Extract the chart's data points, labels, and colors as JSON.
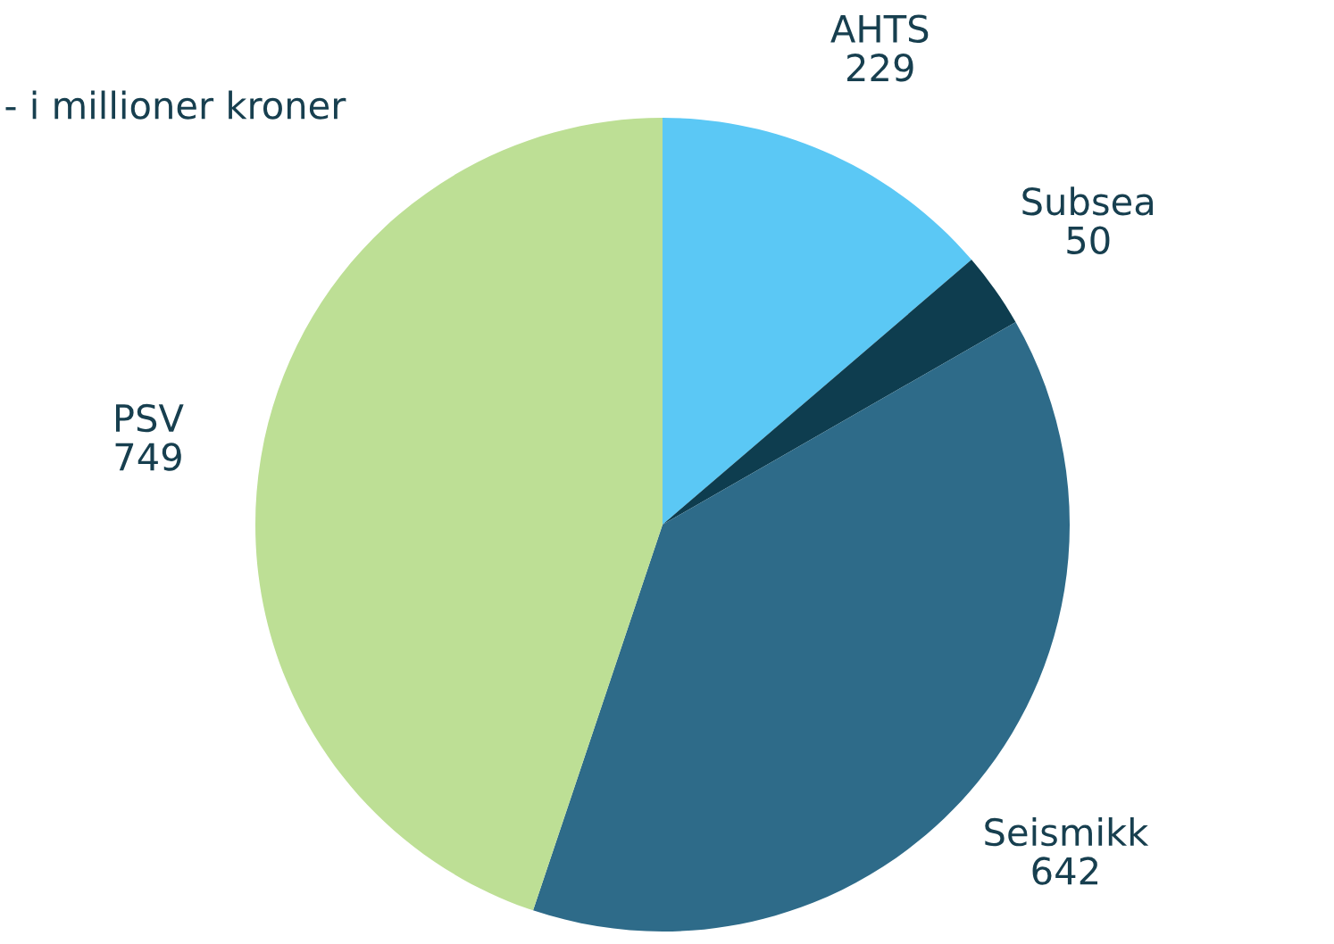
{
  "chart_data": {
    "type": "pie",
    "title": "- i millioner kroner",
    "categories": [
      "AHTS",
      "Subsea",
      "Seismikk",
      "PSV"
    ],
    "values": [
      229,
      50,
      642,
      749
    ],
    "colors": [
      "#5bc8f5",
      "#0e3d4f",
      "#2e6b89",
      "#bddf95"
    ],
    "data_labels": true
  }
}
